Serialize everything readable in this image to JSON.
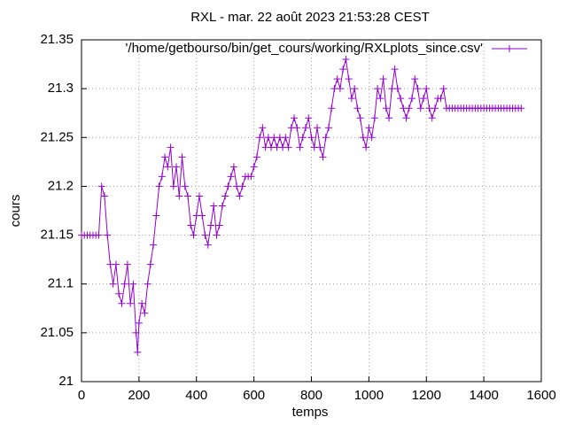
{
  "chart_data": {
    "type": "line",
    "title": "RXL - mar. 22 août 2023 21:53:28 CEST",
    "x_label": "temps",
    "y_label": "cours",
    "xlim": [
      0,
      1600
    ],
    "xticks": [
      0,
      200,
      400,
      600,
      800,
      1000,
      1200,
      1400,
      1600
    ],
    "ylim": [
      21,
      21.35
    ],
    "yticks": [
      21,
      21.05,
      21.1,
      21.15,
      21.2,
      21.25,
      21.3,
      21.35
    ],
    "grid": true,
    "legend": "top-right",
    "x": [
      0,
      10,
      20,
      30,
      40,
      50,
      60,
      70,
      80,
      90,
      100,
      110,
      120,
      130,
      140,
      150,
      160,
      170,
      180,
      190,
      195,
      200,
      210,
      220,
      230,
      240,
      250,
      260,
      270,
      280,
      290,
      300,
      310,
      320,
      330,
      340,
      350,
      360,
      370,
      380,
      390,
      400,
      410,
      420,
      430,
      440,
      450,
      460,
      470,
      480,
      490,
      500,
      510,
      520,
      530,
      540,
      550,
      560,
      570,
      580,
      590,
      600,
      610,
      620,
      630,
      640,
      650,
      660,
      670,
      680,
      690,
      700,
      710,
      720,
      730,
      740,
      750,
      760,
      770,
      780,
      790,
      800,
      810,
      820,
      830,
      840,
      850,
      860,
      870,
      880,
      890,
      900,
      910,
      920,
      930,
      940,
      950,
      960,
      970,
      980,
      990,
      1000,
      1010,
      1020,
      1030,
      1040,
      1050,
      1060,
      1070,
      1080,
      1090,
      1100,
      1110,
      1120,
      1130,
      1140,
      1150,
      1160,
      1170,
      1180,
      1190,
      1200,
      1210,
      1220,
      1230,
      1240,
      1250,
      1260,
      1270,
      1280,
      1290,
      1300,
      1310,
      1320,
      1330,
      1340,
      1350,
      1360,
      1370,
      1380,
      1390,
      1400,
      1410,
      1420,
      1430,
      1440,
      1450,
      1460,
      1470,
      1480,
      1490,
      1500,
      1510,
      1520,
      1530
    ],
    "series": [
      {
        "name": "'/home/getbourso/bin/get_cours/working/RXLplots_since.csv'",
        "color": "#9400d3",
        "values": [
          21.15,
          21.15,
          21.15,
          21.15,
          21.15,
          21.15,
          21.15,
          21.2,
          21.19,
          21.15,
          21.12,
          21.1,
          21.12,
          21.09,
          21.08,
          21.1,
          21.12,
          21.08,
          21.1,
          21.05,
          21.03,
          21.06,
          21.08,
          21.07,
          21.1,
          21.12,
          21.14,
          21.17,
          21.2,
          21.21,
          21.23,
          21.22,
          21.24,
          21.2,
          21.22,
          21.19,
          21.23,
          21.2,
          21.19,
          21.16,
          21.15,
          21.17,
          21.19,
          21.17,
          21.15,
          21.14,
          21.16,
          21.18,
          21.15,
          21.16,
          21.18,
          21.19,
          21.2,
          21.21,
          21.22,
          21.2,
          21.19,
          21.2,
          21.21,
          21.21,
          21.21,
          21.22,
          21.23,
          21.25,
          21.26,
          21.24,
          21.25,
          21.24,
          21.25,
          21.24,
          21.25,
          21.24,
          21.25,
          21.24,
          21.26,
          21.27,
          21.26,
          21.24,
          21.25,
          21.26,
          21.27,
          21.25,
          21.24,
          21.26,
          21.24,
          21.23,
          21.25,
          21.26,
          21.28,
          21.3,
          21.31,
          21.3,
          21.32,
          21.33,
          21.31,
          21.29,
          21.3,
          21.28,
          21.27,
          21.25,
          21.24,
          21.26,
          21.25,
          21.27,
          21.3,
          21.29,
          21.31,
          21.28,
          21.27,
          21.3,
          21.32,
          21.3,
          21.29,
          21.28,
          21.27,
          21.28,
          21.29,
          21.31,
          21.3,
          21.28,
          21.29,
          21.3,
          21.28,
          21.27,
          21.28,
          21.29,
          21.29,
          21.3,
          21.28,
          21.28,
          21.28,
          21.28,
          21.28,
          21.28,
          21.28,
          21.28,
          21.28,
          21.28,
          21.28,
          21.28,
          21.28,
          21.28,
          21.28,
          21.28,
          21.28,
          21.28,
          21.28,
          21.28,
          21.28,
          21.28,
          21.28,
          21.28,
          21.28,
          21.28,
          21.28
        ]
      }
    ]
  }
}
